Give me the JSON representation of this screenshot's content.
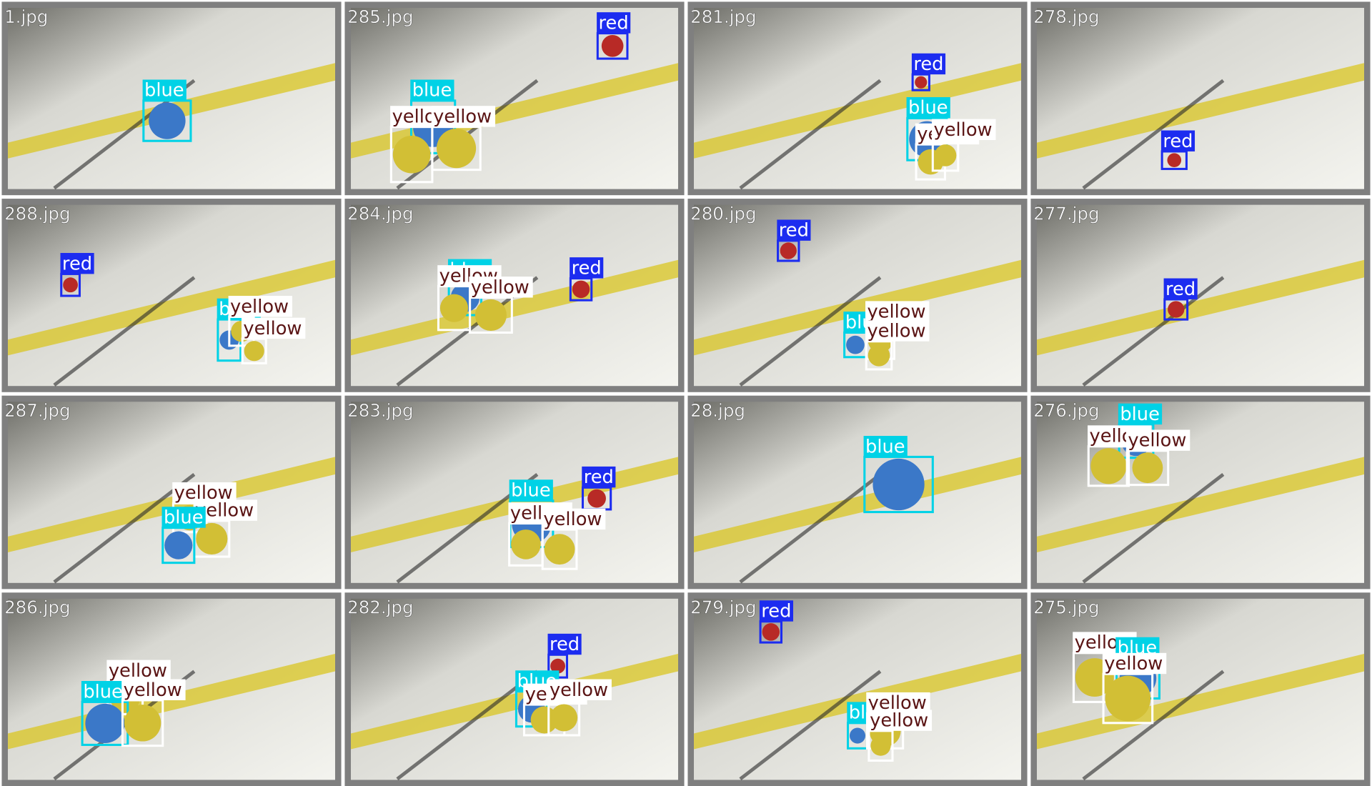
{
  "tiles": [
    {
      "filename": "1.jpg",
      "detections": [
        "blue"
      ]
    },
    {
      "filename": "285.jpg",
      "detections": [
        "red",
        "blue",
        "yellow",
        "yellow"
      ]
    },
    {
      "filename": "281.jpg",
      "detections": [
        "red",
        "blue",
        "yellow",
        "yellow"
      ]
    },
    {
      "filename": "278.jpg",
      "detections": [
        "red"
      ]
    },
    {
      "filename": "288.jpg",
      "detections": [
        "red",
        "blue",
        "yellow",
        "yellow"
      ]
    },
    {
      "filename": "284.jpg",
      "detections": [
        "blue",
        "yellow",
        "yellow",
        "red"
      ]
    },
    {
      "filename": "280.jpg",
      "detections": [
        "red",
        "blue",
        "yellow",
        "yellow"
      ]
    },
    {
      "filename": "277.jpg",
      "detections": [
        "red"
      ]
    },
    {
      "filename": "287.jpg",
      "detections": [
        "yellow",
        "yellow",
        "blue"
      ]
    },
    {
      "filename": "283.jpg",
      "detections": [
        "red",
        "blue",
        "yellow",
        "yellow"
      ]
    },
    {
      "filename": "28.jpg",
      "detections": [
        "blue"
      ]
    },
    {
      "filename": "276.jpg",
      "detections": [
        "blue",
        "yellow",
        "yellow"
      ]
    },
    {
      "filename": "286.jpg",
      "detections": [
        "yellow",
        "blue",
        "yellow"
      ]
    },
    {
      "filename": "282.jpg",
      "detections": [
        "red",
        "blue",
        "yellow",
        "yellow"
      ]
    },
    {
      "filename": "279.jpg",
      "detections": [
        "red",
        "blue",
        "yellow",
        "yellow"
      ]
    },
    {
      "filename": "275.jpg",
      "detections": [
        "yellow",
        "blue",
        "yellow"
      ]
    }
  ]
}
